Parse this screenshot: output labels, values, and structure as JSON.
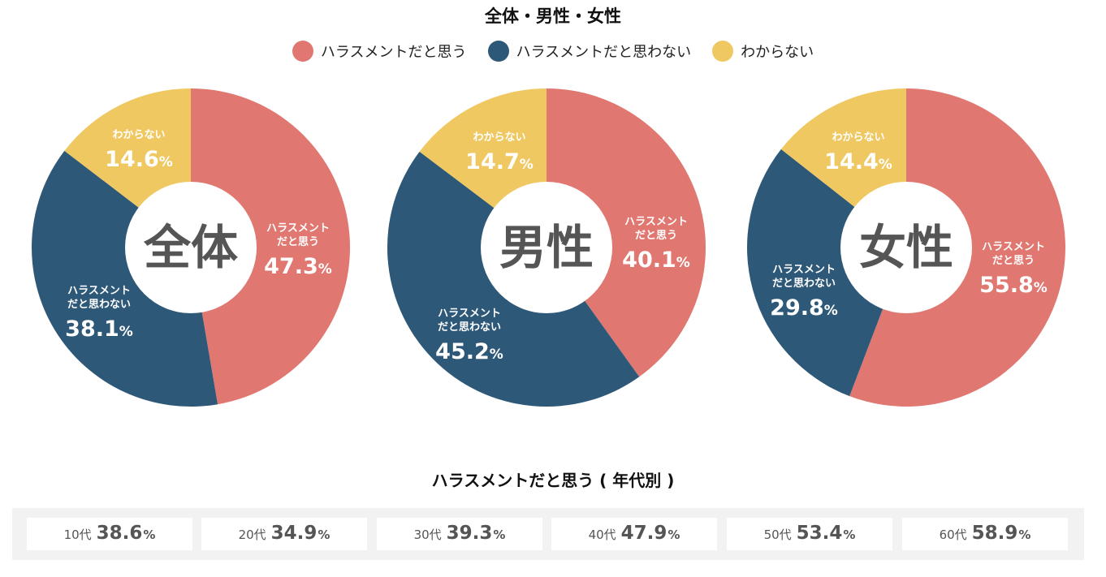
{
  "title": "全体・男性・女性",
  "legend": [
    {
      "label": "ハラスメントだと思う",
      "color": "#E07871"
    },
    {
      "label": "ハラスメントだと思わない",
      "color": "#2E5878"
    },
    {
      "label": "わからない",
      "color": "#F0C862"
    }
  ],
  "chart_data": [
    {
      "type": "pie",
      "center_label": "全体",
      "slices": [
        {
          "label": "ハラスメントだと思う",
          "value": 47.3,
          "display": "47.3",
          "color": "#E07871"
        },
        {
          "label": "ハラスメントだと思わない",
          "value": 38.1,
          "display": "38.1",
          "color": "#2E5878"
        },
        {
          "label": "わからない",
          "value": 14.6,
          "display": "14.6",
          "color": "#F0C862"
        }
      ]
    },
    {
      "type": "pie",
      "center_label": "男性",
      "slices": [
        {
          "label": "ハラスメントだと思う",
          "value": 40.1,
          "display": "40.1",
          "color": "#E07871"
        },
        {
          "label": "ハラスメントだと思わない",
          "value": 45.2,
          "display": "45.2",
          "color": "#2E5878"
        },
        {
          "label": "わからない",
          "value": 14.7,
          "display": "14.7",
          "color": "#F0C862"
        }
      ]
    },
    {
      "type": "pie",
      "center_label": "女性",
      "slices": [
        {
          "label": "ハラスメントだと思う",
          "value": 55.8,
          "display": "55.8",
          "color": "#E07871"
        },
        {
          "label": "ハラスメントだと思わない",
          "value": 29.8,
          "display": "29.8",
          "color": "#2E5878"
        },
        {
          "label": "わからない",
          "value": 14.4,
          "display": "14.4",
          "color": "#F0C862"
        }
      ]
    },
    {
      "type": "table",
      "title": "ハラスメントだと思う ( 年代別 )",
      "rows": [
        {
          "label": "10代",
          "value": 38.6,
          "display": "38.6"
        },
        {
          "label": "20代",
          "value": 34.9,
          "display": "34.9"
        },
        {
          "label": "30代",
          "value": 39.3,
          "display": "39.3"
        },
        {
          "label": "40代",
          "value": 47.9,
          "display": "47.9"
        },
        {
          "label": "50代",
          "value": 53.4,
          "display": "53.4"
        },
        {
          "label": "60代",
          "value": 58.9,
          "display": "58.9"
        }
      ]
    }
  ],
  "percent_unit": "%"
}
